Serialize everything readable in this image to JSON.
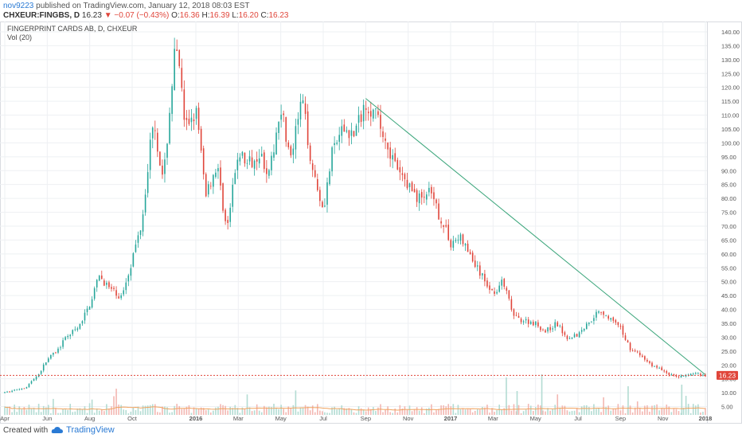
{
  "header": {
    "author": "nov9223",
    "published": " published on TradingView.com, January 12, 2018 08:03 EST",
    "symbol": "CHXEUR:FINGBS, D",
    "last": "16.23",
    "arrow": "▼",
    "change": "−0.07 (−0.43%)",
    "open_label": "O:",
    "open": "16.36",
    "high_label": "H:",
    "high": "16.39",
    "low_label": "L:",
    "low": "16.20",
    "close_label": "C:",
    "close": "16.23"
  },
  "footer": {
    "created_with": "Created with",
    "brand": "TradingView"
  },
  "colors": {
    "up": "#26a69a",
    "down": "#e0453a",
    "trendline": "#3aa57a",
    "price_line": "#e0453a",
    "vol_up": "#b3dcd3",
    "vol_down": "#f3b7b2",
    "vol_ma": "#f0a35e",
    "grid": "#eef0f3",
    "axis_text": "#555555"
  },
  "chart_data": {
    "type": "candlestick",
    "title": "FINGERPRINT CARDS AB, D, CHXEUR",
    "indicator": "Vol (20)",
    "x_ticks": [
      "Apr",
      "Jun",
      "Aug",
      "Oct",
      "2016",
      "Mar",
      "May",
      "Jul",
      "Sep",
      "Nov",
      "2017",
      "Mar",
      "May",
      "Jul",
      "Sep",
      "Nov",
      "2018"
    ],
    "y_ticks": [
      5,
      10,
      15,
      20,
      25,
      30,
      35,
      40,
      45,
      50,
      55,
      60,
      65,
      70,
      75,
      80,
      85,
      90,
      95,
      100,
      105,
      110,
      115,
      120,
      125,
      130,
      135,
      140
    ],
    "y_tick_labels": [
      "5.00",
      "10.00",
      "15.00",
      "20.00",
      "25.00",
      "30.00",
      "35.00",
      "40.00",
      "45.00",
      "50.00",
      "55.00",
      "60.00",
      "65.00",
      "70.00",
      "75.00",
      "80.00",
      "85.00",
      "90.00",
      "95.00",
      "100.00",
      "105.00",
      "110.00",
      "115.00",
      "120.00",
      "125.00",
      "130.00",
      "135.00",
      "140.00"
    ],
    "ylim": [
      2,
      142
    ],
    "x_range": [
      "2015-04",
      "2018-01"
    ],
    "last_price": 16.23,
    "last_price_label": "16.23",
    "price_path": [
      [
        "2015-04",
        10
      ],
      [
        "2015-05",
        12
      ],
      [
        "2015-05-20",
        17
      ],
      [
        "2015-06",
        22
      ],
      [
        "2015-06-15",
        25
      ],
      [
        "2015-07",
        31
      ],
      [
        "2015-07-15",
        33
      ],
      [
        "2015-08",
        42
      ],
      [
        "2015-08-15",
        52
      ],
      [
        "2015-09",
        47
      ],
      [
        "2015-09-15",
        44
      ],
      [
        "2015-10",
        58
      ],
      [
        "2015-10-15",
        72
      ],
      [
        "2015-11",
        110
      ],
      [
        "2015-11-15",
        85
      ],
      [
        "2015-12",
        132
      ],
      [
        "2015-12-08",
        128
      ],
      [
        "2015-12-15",
        105
      ],
      [
        "2016-01",
        112
      ],
      [
        "2016-01-15",
        82
      ],
      [
        "2016-02",
        92
      ],
      [
        "2016-02-15",
        68
      ],
      [
        "2016-03",
        97
      ],
      [
        "2016-03-15",
        92
      ],
      [
        "2016-04",
        97
      ],
      [
        "2016-04-15",
        88
      ],
      [
        "2016-05",
        114
      ],
      [
        "2016-05-15",
        93
      ],
      [
        "2016-06",
        116
      ],
      [
        "2016-06-15",
        92
      ],
      [
        "2016-07",
        76
      ],
      [
        "2016-07-15",
        98
      ],
      [
        "2016-08",
        105
      ],
      [
        "2016-08-15",
        103
      ],
      [
        "2016-09",
        115
      ],
      [
        "2016-09-15",
        110
      ],
      [
        "2016-10",
        100
      ],
      [
        "2016-10-15",
        90
      ],
      [
        "2016-11",
        85
      ],
      [
        "2016-11-15",
        80
      ],
      [
        "2016-12",
        82
      ],
      [
        "2016-12-15",
        74
      ],
      [
        "2017-01",
        64
      ],
      [
        "2017-01-15",
        66
      ],
      [
        "2017-02",
        58
      ],
      [
        "2017-02-15",
        52
      ],
      [
        "2017-03",
        46
      ],
      [
        "2017-03-15",
        50
      ],
      [
        "2017-04",
        37
      ],
      [
        "2017-05",
        35
      ],
      [
        "2017-05-15",
        32
      ],
      [
        "2017-06",
        35
      ],
      [
        "2017-06-15",
        30
      ],
      [
        "2017-07",
        31
      ],
      [
        "2017-07-15",
        35
      ],
      [
        "2017-08",
        40
      ],
      [
        "2017-08-15",
        37
      ],
      [
        "2017-09",
        33
      ],
      [
        "2017-09-15",
        26
      ],
      [
        "2017-10",
        23
      ],
      [
        "2017-10-15",
        20
      ],
      [
        "2017-11",
        18
      ],
      [
        "2017-11-15",
        16
      ],
      [
        "2017-12",
        16
      ],
      [
        "2017-12-15",
        17
      ],
      [
        "2018-01",
        16.23
      ]
    ],
    "trendline": [
      [
        "2016-09",
        116
      ],
      [
        "2018-01",
        16.5
      ]
    ],
    "volume_note": "Vol (20)"
  }
}
